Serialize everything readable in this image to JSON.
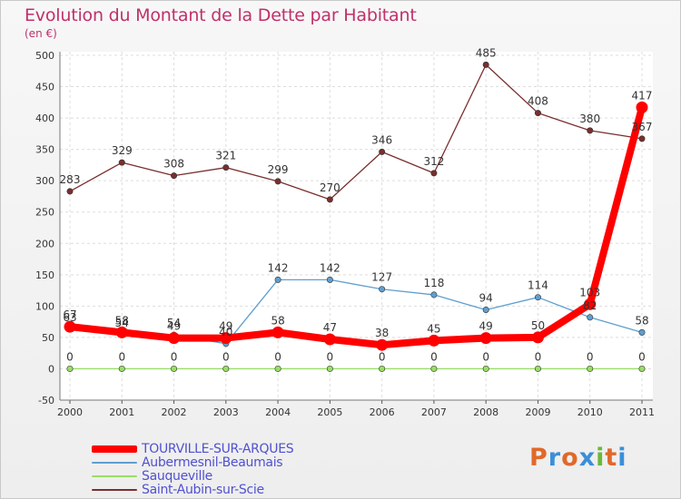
{
  "chart_data": {
    "type": "line",
    "title": "Evolution du Montant de la Dette par Habitant",
    "subtitle": "(en €)",
    "x": [
      "2000",
      "2001",
      "2002",
      "2003",
      "2004",
      "2005",
      "2006",
      "2007",
      "2008",
      "2009",
      "2010",
      "2011"
    ],
    "ylim": [
      -50,
      500
    ],
    "yticks": [
      -50,
      0,
      50,
      100,
      150,
      200,
      250,
      300,
      350,
      400,
      450,
      500
    ],
    "grid": true,
    "legend_position": "bottom-left",
    "series": [
      {
        "name": "Saint-Aubin-sur-Scie",
        "color": "#7a2e2e",
        "values": [
          283,
          329,
          308,
          321,
          299,
          270,
          346,
          312,
          485,
          408,
          380,
          367
        ],
        "labels": [
          "283",
          "329",
          "308",
          "321",
          "299",
          "270",
          "346",
          "312",
          "485",
          "408",
          "380",
          "367"
        ]
      },
      {
        "name": "Aubermesnil-Beaumais",
        "color": "#5f9fd0",
        "values": [
          63,
          54,
          54,
          40,
          142,
          142,
          127,
          118,
          94,
          114,
          82,
          58
        ],
        "labels": [
          "63",
          "54",
          "54",
          "40",
          "142",
          "142",
          "127",
          "118",
          "94",
          "114",
          "82",
          "58"
        ]
      },
      {
        "name": "Sauqueville",
        "color": "#99dd66",
        "values": [
          0,
          0,
          0,
          0,
          0,
          0,
          0,
          0,
          0,
          0,
          0,
          0
        ],
        "labels": [
          "0",
          "0",
          "0",
          "0",
          "0",
          "0",
          "0",
          "0",
          "0",
          "0",
          "0",
          "0"
        ]
      },
      {
        "name": "TOURVILLE-SUR-ARQUES",
        "color": "#ff0000",
        "values": [
          67,
          58,
          49,
          49,
          58,
          47,
          38,
          45,
          49,
          50,
          103,
          417
        ],
        "labels": [
          "67",
          "58",
          "49",
          "49",
          "58",
          "47",
          "38",
          "45",
          "49",
          "50",
          "103",
          "417"
        ]
      }
    ]
  },
  "legend": [
    {
      "label": "TOURVILLE-SUR-ARQUES",
      "color": "#ff0000"
    },
    {
      "label": "Aubermesnil-Beaumais",
      "color": "#5f9fd0"
    },
    {
      "label": "Sauqueville",
      "color": "#99dd66"
    },
    {
      "label": "Saint-Aubin-sur-Scie",
      "color": "#7a2e2e"
    }
  ],
  "logo": {
    "text": "Proxiti",
    "letters": [
      "P",
      "r",
      "o",
      "x",
      "i",
      "t",
      "i"
    ]
  }
}
